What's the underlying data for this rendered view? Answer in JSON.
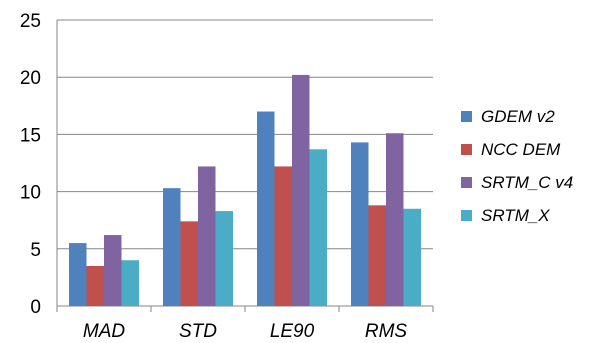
{
  "chart_data": {
    "type": "bar",
    "categories": [
      "MAD",
      "STD",
      "LE90",
      "RMS"
    ],
    "series": [
      {
        "name": "GDEM v2",
        "color": "#4F81BD",
        "values": [
          5.5,
          10.3,
          17.0,
          14.3
        ]
      },
      {
        "name": "NCC DEM",
        "color": "#C0504D",
        "values": [
          3.5,
          7.4,
          12.2,
          8.8
        ]
      },
      {
        "name": "SRTM_C v4",
        "color": "#8064A2",
        "values": [
          6.2,
          12.2,
          20.2,
          15.1
        ]
      },
      {
        "name": "SRTM_X",
        "color": "#4BACC6",
        "values": [
          4.0,
          8.3,
          13.7,
          8.5
        ]
      }
    ],
    "ylim": [
      0,
      25
    ],
    "yticks": [
      "0",
      "5",
      "10",
      "15",
      "20",
      "25"
    ],
    "title": "",
    "xlabel": "",
    "ylabel": "",
    "grid": "horizontal",
    "legend_position": "right"
  }
}
